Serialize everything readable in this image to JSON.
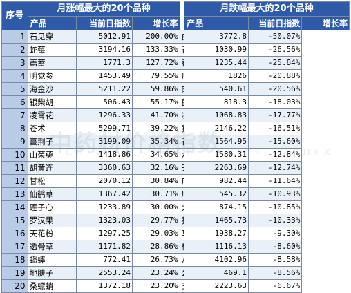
{
  "header": {
    "index_label": "序号",
    "left_title": "月涨幅最大的20个品种",
    "right_title": "月跌幅最大的20个品种",
    "col_name": "产品",
    "col_index": "当前日指数",
    "col_rate": "增长率"
  },
  "rows": [
    {
      "n": "1",
      "ln": "石见穿",
      "li": "5012.91",
      "lr": "200.00%",
      "rn": "白豆蔻",
      "ri": "3772.8",
      "rr": "-50.07%"
    },
    {
      "n": "2",
      "ln": "蛇莓",
      "li": "3194.16",
      "lr": "133.33%",
      "rn": "香叶",
      "ri": "1030.99",
      "rr": "-26.56%"
    },
    {
      "n": "3",
      "ln": "萹蓄",
      "li": "1771.3",
      "lr": "127.72%",
      "rn": "香加皮",
      "ri": "1235.44",
      "rr": "-25.84%"
    },
    {
      "n": "4",
      "ln": "明党参",
      "li": "1453.49",
      "lr": "79.55%",
      "rn": "川牛膝",
      "ri": "1826",
      "rr": "-20.88%"
    },
    {
      "n": "5",
      "ln": "海金沙",
      "li": "5211.22",
      "lr": "59.86%",
      "rn": "肉豆蔻",
      "ri": "540.61",
      "rr": "-20.56%"
    },
    {
      "n": "6",
      "ln": "银柴胡",
      "li": "506.43",
      "lr": "55.17%",
      "rn": "蓖麻子",
      "ri": "818.3",
      "rr": "-18.03%"
    },
    {
      "n": "7",
      "ln": "凌霄花",
      "li": "1296.33",
      "lr": "41.70%",
      "rn": "决明子",
      "ri": "1068.83",
      "rr": "-17.77%"
    },
    {
      "n": "8",
      "ln": "苍术",
      "li": "5299.71",
      "lr": "39.22%",
      "rn": "独活",
      "ri": "2146.22",
      "rr": "-16.51%"
    },
    {
      "n": "9",
      "ln": "蔓荆子",
      "li": "3199.09",
      "lr": "35.34%",
      "rn": "香薷叶",
      "ri": "1564.95",
      "rr": "-15.60%"
    },
    {
      "n": "10",
      "ln": "山茱萸",
      "li": "1418.86",
      "lr": "34.65%",
      "rn": "水菖蒲",
      "ri": "1580.31",
      "rr": "-12.84%"
    },
    {
      "n": "11",
      "ln": "胡黄连",
      "li": "3360.63",
      "lr": "32.16%",
      "rn": "天冬",
      "ri": "2263.69",
      "rr": "-12.74%"
    },
    {
      "n": "12",
      "ln": "甘松",
      "li": "2070.12",
      "lr": "30.84%",
      "rn": "广金钱草",
      "ri": "982.44",
      "rr": "-11.64%"
    },
    {
      "n": "13",
      "ln": "仙鹤草",
      "li": "1367.42",
      "lr": "30.71%",
      "rn": "厚朴",
      "ri": "545.32",
      "rr": "-10.93%"
    },
    {
      "n": "14",
      "ln": "莲子心",
      "li": "1233.89",
      "lr": "30.00%",
      "rn": "大腹皮",
      "ri": "874.15",
      "rr": "-10.85%"
    },
    {
      "n": "15",
      "ln": "罗汉果",
      "li": "1323.03",
      "lr": "29.77%",
      "rn": "狗脊",
      "ri": "1465.73",
      "rr": "-10.33%"
    },
    {
      "n": "16",
      "ln": "天花粉",
      "li": "1297.25",
      "lr": "29.03%",
      "rn": "马鞭草",
      "ri": "1938.27",
      "rr": "-9.30%"
    },
    {
      "n": "17",
      "ln": "透骨草",
      "li": "1171.82",
      "lr": "28.86%",
      "rn": "板蓝根",
      "ri": "1116.13",
      "rr": "-8.60%"
    },
    {
      "n": "18",
      "ln": "蟋蟀",
      "li": "772.41",
      "lr": "26.73%",
      "rn": "八角茴香",
      "ri": "4102.96",
      "rr": "-8.58%"
    },
    {
      "n": "19",
      "ln": "地肤子",
      "li": "2553.24",
      "lr": "23.24%",
      "rn": "公丁香",
      "ri": "469.1",
      "rr": "-8.56%"
    },
    {
      "n": "20",
      "ln": "桑螵蛸",
      "li": "1372.18",
      "lr": "23.20%",
      "rn": "五味子",
      "ri": "2223.63",
      "rr": "-6.67%"
    }
  ]
}
